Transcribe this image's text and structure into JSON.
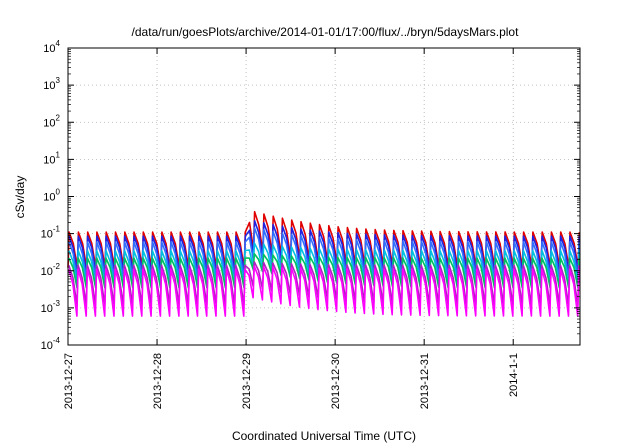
{
  "chart_data": {
    "type": "line",
    "title": "/data/run/goesPlots/archive/2014-01-01/17:00/flux/../bryn/5daysMars.plot",
    "xlabel": "Coordinated Universal Time (UTC)",
    "ylabel": "cSv/day",
    "y_scale": "log",
    "ylim": [
      0.0001,
      10000
    ],
    "y_ticks": [
      {
        "base": "10",
        "exp": "4"
      },
      {
        "base": "10",
        "exp": "3"
      },
      {
        "base": "10",
        "exp": "2"
      },
      {
        "base": "10",
        "exp": "1"
      },
      {
        "base": "10",
        "exp": "0"
      },
      {
        "base": "10",
        "exp": "-1"
      },
      {
        "base": "10",
        "exp": "-2"
      },
      {
        "base": "10",
        "exp": "-3"
      },
      {
        "base": "10",
        "exp": "-4"
      }
    ],
    "x_ticks": [
      "2013-12-27",
      "2013-12-28",
      "2013-12-29",
      "2013-12-30",
      "2013-12-31",
      "2014-1-1"
    ],
    "xlim": [
      "2013-12-27",
      "2014-01-01T18:00"
    ],
    "grid": true,
    "saw_period_hours": 2.5,
    "event_start": "2013-12-29T00:00",
    "series": [
      {
        "color": "#e00000",
        "base_peak": 0.11,
        "base_trough": 0.012,
        "event_peak": 0.45
      },
      {
        "color": "#2020e0",
        "base_peak": 0.085,
        "base_trough": 0.009,
        "event_peak": 0.25
      },
      {
        "color": "#3070ff",
        "base_peak": 0.06,
        "base_trough": 0.006,
        "event_peak": 0.16
      },
      {
        "color": "#00c0e0",
        "base_peak": 0.035,
        "base_trough": 0.004,
        "event_peak": 0.06
      },
      {
        "color": "#00c060",
        "base_peak": 0.022,
        "base_trough": 0.0035,
        "event_peak": 0.03
      },
      {
        "color": "#b020c0",
        "base_peak": 0.014,
        "base_trough": 0.0012,
        "event_peak": 0.018
      },
      {
        "color": "#ff00ff",
        "base_peak": 0.011,
        "base_trough": 0.0006,
        "event_peak": 0.014
      }
    ]
  }
}
